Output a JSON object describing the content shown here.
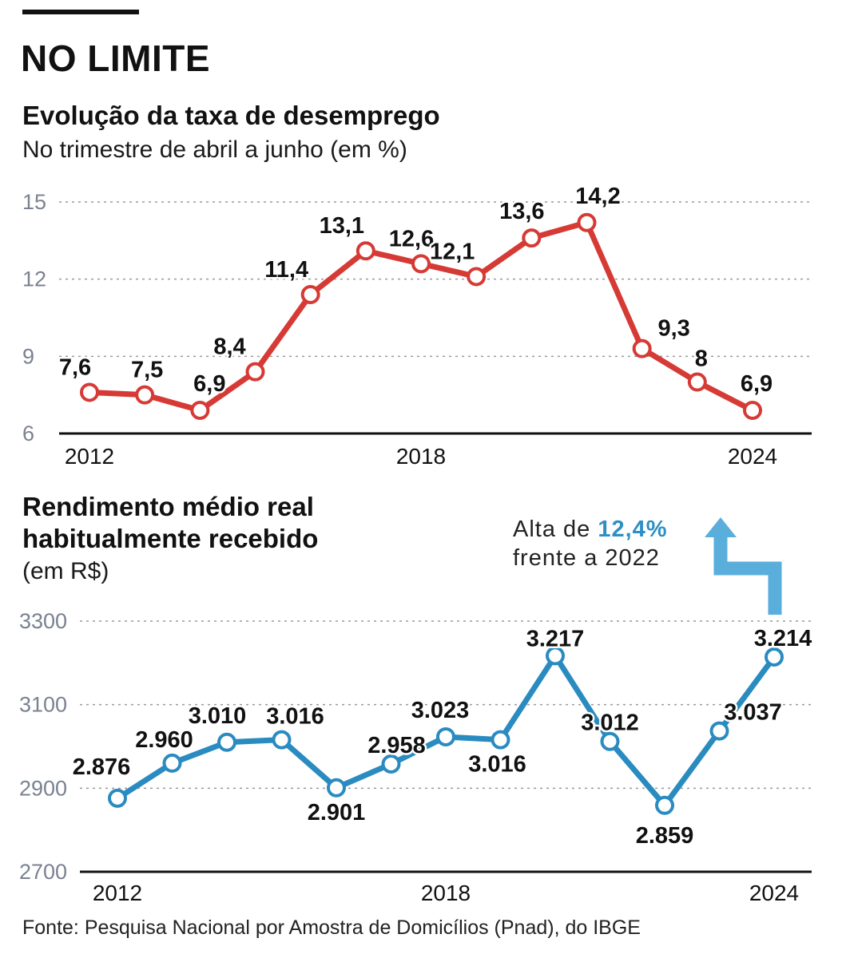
{
  "headline": "NO LIMITE",
  "note": {
    "prefix": "Alta de ",
    "highlight": "12,4%",
    "line2": "frente a 2022",
    "arrow_color": "#5aaedc",
    "highlight_color": "#2d8fc4"
  },
  "source": "Fonte: Pesquisa Nacional por Amostra de Domicílios (Pnad), do IBGE",
  "chart_data": [
    {
      "type": "line",
      "title": "Evolução da taxa de desemprego",
      "subtitle": "No trimestre de abril a junho (em %)",
      "color": "#d63a35",
      "x": [
        2012,
        2013,
        2014,
        2015,
        2016,
        2017,
        2018,
        2019,
        2020,
        2021,
        2022,
        2023,
        2024
      ],
      "values": [
        7.6,
        7.5,
        6.9,
        8.4,
        11.4,
        13.1,
        12.6,
        12.1,
        13.6,
        14.2,
        9.3,
        8,
        6.9
      ],
      "data_labels": [
        "7,6",
        "7,5",
        "6,9",
        "8,4",
        "11,4",
        "13,1",
        "12,6",
        "12,1",
        "13,6",
        "14,2",
        "9,3",
        "8",
        "6,9"
      ],
      "yticks": [
        "6",
        "9",
        "12",
        "15"
      ],
      "ytick_values": [
        6,
        9,
        12,
        15
      ],
      "xticks": [
        "2012",
        "2018",
        "2024"
      ],
      "xtick_values": [
        2012,
        2018,
        2024
      ],
      "ylim": [
        6,
        15
      ],
      "grid": true
    },
    {
      "type": "line",
      "title_lines": [
        "Rendimento médio real",
        "habitualmente recebido"
      ],
      "subtitle": "(em R$)",
      "color": "#2a8bc0",
      "x": [
        2012,
        2013,
        2014,
        2015,
        2016,
        2017,
        2018,
        2019,
        2020,
        2021,
        2022,
        2023,
        2024
      ],
      "values": [
        2876,
        2960,
        3010,
        3016,
        2901,
        2958,
        3023,
        3016,
        3217,
        3012,
        2859,
        3037,
        3214
      ],
      "data_labels": [
        "2.876",
        "2.960",
        "3.010",
        "3.016",
        "2.901",
        "2.958",
        "3.023",
        "3.016",
        "3.217",
        "3.012",
        "2.859",
        "3.037",
        "3.214"
      ],
      "yticks": [
        "2700",
        "2900",
        "3100",
        "3300"
      ],
      "ytick_values": [
        2700,
        2900,
        3100,
        3300
      ],
      "xticks": [
        "2012",
        "2018",
        "2024"
      ],
      "xtick_values": [
        2012,
        2018,
        2024
      ],
      "ylim": [
        2700,
        3300
      ],
      "grid": true
    }
  ]
}
